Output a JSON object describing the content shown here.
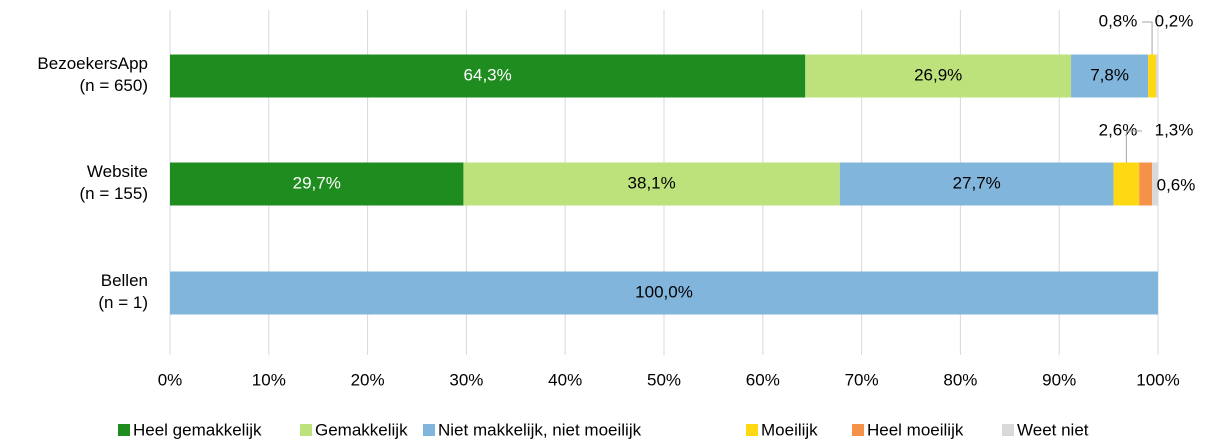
{
  "chart_data": {
    "type": "stacked-bar-horizontal",
    "categories": [
      "BezoekersApp\n(n = 650)",
      "Website\n(n = 155)",
      "Bellen\n(n = 1)"
    ],
    "series": [
      {
        "name": "Heel gemakkelijk",
        "color": "#1e8c1e",
        "values": [
          64.3,
          29.7,
          0
        ],
        "value_labels": [
          "64,3%",
          "29,7%",
          null
        ]
      },
      {
        "name": "Gemakkelijk",
        "color": "#bde27c",
        "values": [
          26.9,
          38.1,
          0
        ],
        "value_labels": [
          "26,9%",
          "38,1%",
          null
        ]
      },
      {
        "name": "Niet makkelijk, niet moeilijk",
        "color": "#82b5dc",
        "values": [
          7.8,
          27.7,
          100
        ],
        "value_labels": [
          "7,8%",
          "27,7%",
          "100,0%"
        ]
      },
      {
        "name": "Moeilijk",
        "color": "#ffd814",
        "values": [
          0.8,
          2.6,
          0
        ],
        "value_labels": [
          "0,8%",
          "2,6%",
          null
        ]
      },
      {
        "name": "Heel moeilijk",
        "color": "#f4924a",
        "values": [
          0,
          1.3,
          0
        ],
        "value_labels": [
          null,
          "1,3%",
          null
        ]
      },
      {
        "name": "Weet niet",
        "color": "#d9d9d9",
        "values": [
          0.2,
          0.6,
          0
        ],
        "value_labels": [
          "0,2%",
          "0,6%",
          null
        ]
      }
    ],
    "xlim": [
      0,
      100
    ],
    "xticks": [
      {
        "value": 0,
        "label": "0%"
      },
      {
        "value": 10,
        "label": "10%"
      },
      {
        "value": 20,
        "label": "20%"
      },
      {
        "value": 30,
        "label": "30%"
      },
      {
        "value": 40,
        "label": "40%"
      },
      {
        "value": 50,
        "label": "50%"
      },
      {
        "value": 60,
        "label": "60%"
      },
      {
        "value": 70,
        "label": "70%"
      },
      {
        "value": 80,
        "label": "80%"
      },
      {
        "value": 90,
        "label": "90%"
      },
      {
        "value": 100,
        "label": "100%"
      }
    ],
    "grid": true,
    "legend": "bottom"
  }
}
